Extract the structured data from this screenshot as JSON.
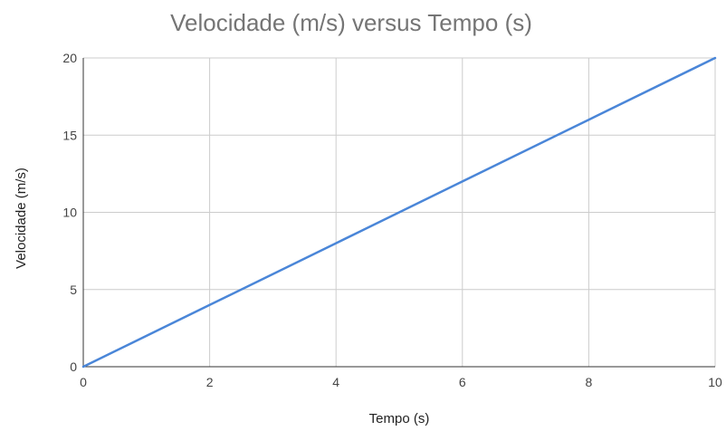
{
  "chart_data": {
    "type": "line",
    "title": "Velocidade (m/s) versus Tempo (s)",
    "xlabel": "Tempo (s)",
    "ylabel": "Velocidade (m/s)",
    "xlim": [
      0,
      10
    ],
    "ylim": [
      0,
      20
    ],
    "x_ticks": [
      0,
      2,
      4,
      6,
      8,
      10
    ],
    "y_ticks": [
      0,
      5,
      10,
      15,
      20
    ],
    "grid": true,
    "series": [
      {
        "name": "Velocidade (m/s)",
        "color": "#4a86d8",
        "x": [
          0,
          2,
          4,
          6,
          8,
          10
        ],
        "y": [
          0,
          4,
          8,
          12,
          16,
          20
        ]
      }
    ]
  }
}
